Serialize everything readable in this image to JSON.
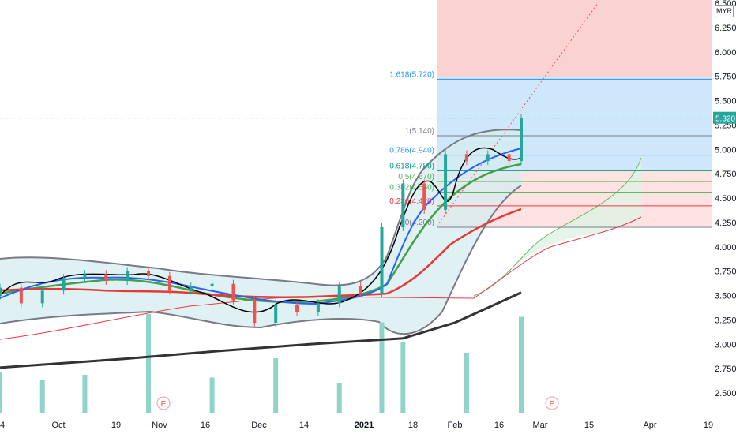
{
  "price_axis": {
    "currency": "MYR",
    "ticks": [
      "6.500",
      "6.250",
      "6.000",
      "5.750",
      "5.500",
      "5.250",
      "5.000",
      "4.750",
      "4.500",
      "4.250",
      "4.000",
      "3.750",
      "3.500",
      "3.250",
      "3.000",
      "2.750",
      "2.500"
    ],
    "last_price_label": "5.320"
  },
  "time_axis": {
    "labels": [
      "4",
      "Oct",
      "19",
      "Nov",
      "16",
      "Dec",
      "14",
      "2021",
      "18",
      "Feb",
      "16",
      "Mar",
      "15",
      "Apr",
      "19"
    ]
  },
  "event_markers": [
    "E",
    "E"
  ],
  "fib_levels": [
    {
      "label": "1.618(5.720)",
      "price": 5.72,
      "color": "#2196f3"
    },
    {
      "label": "1(5.140)",
      "price": 5.14,
      "color": "#787b86"
    },
    {
      "label": "0.786(4.940)",
      "price": 4.94,
      "color": "#2196f3"
    },
    {
      "label": "0.618(4.780)",
      "price": 4.78,
      "color": "#089981"
    },
    {
      "label": "0.5(4.670)",
      "price": 4.67,
      "color": "#4caf50"
    },
    {
      "label": "0.382(4.560)",
      "price": 4.56,
      "color": "#4caf50"
    },
    {
      "label": "0.236(4.420)",
      "price": 4.42,
      "color": "#f23645"
    },
    {
      "label": "0(4.200)",
      "price": 4.2,
      "color": "#787b86"
    }
  ],
  "colors": {
    "up": "#26a69a",
    "down": "#ef5350",
    "ma_black": "#000000",
    "ma_blue": "#2962ff",
    "ma_green": "#43a047",
    "ma_red": "#e53935",
    "ma_200": "#333333",
    "bb": "#787b86",
    "volume_up": "#8fd3c9",
    "volume_down": "#f7a9a7",
    "price_badge": "#26a69a"
  },
  "chart_data": {
    "type": "candlestick",
    "symbol_currency": "MYR",
    "ylim": [
      2.3,
      6.55
    ],
    "last_price": 5.32,
    "x_range_dates": [
      "2020-09-04",
      "2021-04-22"
    ],
    "candles": [
      {
        "date": "2020-09-04",
        "open": 3.5,
        "close": 3.58
      },
      {
        "date": "2020-09-11",
        "open": 3.58,
        "close": 3.42
      },
      {
        "date": "2020-09-18",
        "open": 3.42,
        "close": 3.55
      },
      {
        "date": "2020-09-25",
        "open": 3.55,
        "close": 3.68
      },
      {
        "date": "2020-10-02",
        "open": 3.68,
        "close": 3.72
      },
      {
        "date": "2020-10-09",
        "open": 3.72,
        "close": 3.65
      },
      {
        "date": "2020-10-16",
        "open": 3.65,
        "close": 3.75
      },
      {
        "date": "2020-10-23",
        "open": 3.75,
        "close": 3.7
      },
      {
        "date": "2020-10-30",
        "open": 3.7,
        "close": 3.55
      },
      {
        "date": "2020-11-06",
        "open": 3.55,
        "close": 3.6
      },
      {
        "date": "2020-11-13",
        "open": 3.6,
        "close": 3.62
      },
      {
        "date": "2020-11-20",
        "open": 3.62,
        "close": 3.45
      },
      {
        "date": "2020-11-27",
        "open": 3.45,
        "close": 3.22
      },
      {
        "date": "2020-12-04",
        "open": 3.22,
        "close": 3.4
      },
      {
        "date": "2020-12-11",
        "open": 3.4,
        "close": 3.33
      },
      {
        "date": "2020-12-18",
        "open": 3.33,
        "close": 3.42
      },
      {
        "date": "2020-12-25",
        "open": 3.42,
        "close": 3.6
      },
      {
        "date": "2021-01-01",
        "open": 3.6,
        "close": 3.52
      },
      {
        "date": "2021-01-08",
        "open": 3.52,
        "close": 4.2
      },
      {
        "date": "2021-01-15",
        "open": 4.2,
        "close": 4.65
      },
      {
        "date": "2021-01-22",
        "open": 4.65,
        "close": 4.38
      },
      {
        "date": "2021-01-29",
        "open": 4.38,
        "close": 4.95
      },
      {
        "date": "2021-02-05",
        "open": 4.95,
        "close": 4.88
      },
      {
        "date": "2021-02-12",
        "open": 4.88,
        "close": 4.95
      },
      {
        "date": "2021-02-19",
        "open": 4.95,
        "close": 4.88
      },
      {
        "date": "2021-02-23",
        "open": 4.88,
        "close": 5.32
      }
    ],
    "volume": [
      {
        "date": "2020-09-04",
        "value": 1.5
      },
      {
        "date": "2020-09-18",
        "value": 1.2
      },
      {
        "date": "2020-10-02",
        "value": 1.4
      },
      {
        "date": "2020-10-23",
        "value": 3.6
      },
      {
        "date": "2020-11-13",
        "value": 1.3
      },
      {
        "date": "2020-12-04",
        "value": 2.0
      },
      {
        "date": "2020-12-25",
        "value": 1.1
      },
      {
        "date": "2021-01-08",
        "value": 3.3
      },
      {
        "date": "2021-01-15",
        "value": 2.6
      },
      {
        "date": "2021-02-05",
        "value": 2.2
      },
      {
        "date": "2021-02-23",
        "value": 3.5
      }
    ],
    "moving_average_200": [
      {
        "date": "2020-09-04",
        "value": 2.76
      },
      {
        "date": "2020-10-15",
        "value": 2.85
      },
      {
        "date": "2020-11-15",
        "value": 2.93
      },
      {
        "date": "2020-12-15",
        "value": 3.0
      },
      {
        "date": "2021-01-15",
        "value": 3.06
      },
      {
        "date": "2021-02-01",
        "value": 3.22
      },
      {
        "date": "2021-02-23",
        "value": 3.53
      }
    ],
    "fibonacci": [
      {
        "ratio": 1.618,
        "price": 5.72
      },
      {
        "ratio": 1,
        "price": 5.14
      },
      {
        "ratio": 0.786,
        "price": 4.94
      },
      {
        "ratio": 0.618,
        "price": 4.78
      },
      {
        "ratio": 0.5,
        "price": 4.67
      },
      {
        "ratio": 0.382,
        "price": 4.56
      },
      {
        "ratio": 0.236,
        "price": 4.42
      },
      {
        "ratio": 0,
        "price": 4.2
      }
    ]
  }
}
